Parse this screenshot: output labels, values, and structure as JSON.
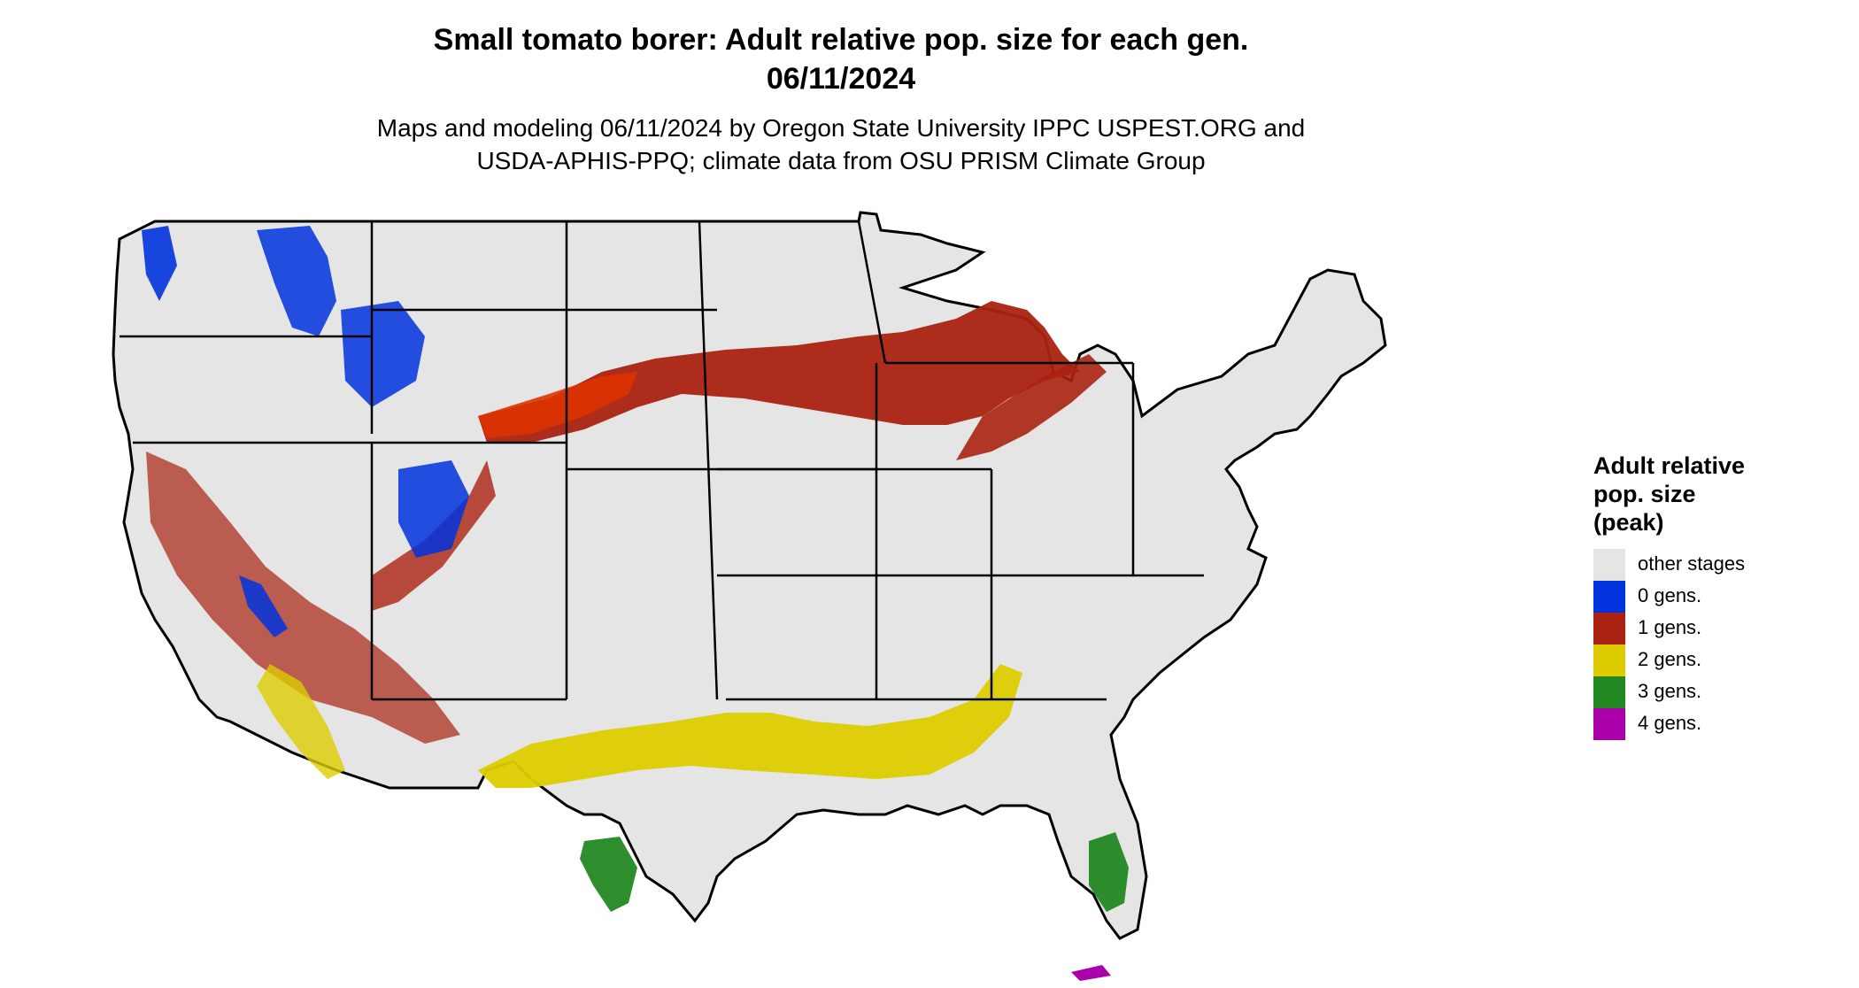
{
  "title_line1": "Small tomato borer: Adult relative pop. size for each gen.",
  "title_line2": "06/11/2024",
  "subtitle_line1": "Maps and modeling 06/11/2024 by Oregon State University IPPC USPEST.ORG and",
  "subtitle_line2": "USDA-APHIS-PPQ; climate data from OSU PRISM Climate Group",
  "legend": {
    "title_line1": "Adult relative",
    "title_line2": "pop. size",
    "title_line3": "(peak)",
    "items": [
      {
        "label": "other stages",
        "color": "#e5e5e5"
      },
      {
        "label": "0 gens.",
        "color": "#0033dd"
      },
      {
        "label": "1 gens.",
        "color": "#aa2211"
      },
      {
        "label": "2 gens.",
        "color": "#ddcc00"
      },
      {
        "label": "3 gens.",
        "color": "#228822"
      },
      {
        "label": "4 gens.",
        "color": "#aa00aa"
      }
    ]
  },
  "colors": {
    "land": "#e5e5e5",
    "border": "#000000",
    "zero_gen": "#0033dd",
    "zero_gen_light": "#22aaff",
    "one_gen": "#aa2211",
    "one_gen_bright": "#dd3300",
    "two_gen": "#ddcc00",
    "three_gen": "#228822",
    "three_gen_light": "#88dd88",
    "four_gen": "#aa00aa"
  }
}
